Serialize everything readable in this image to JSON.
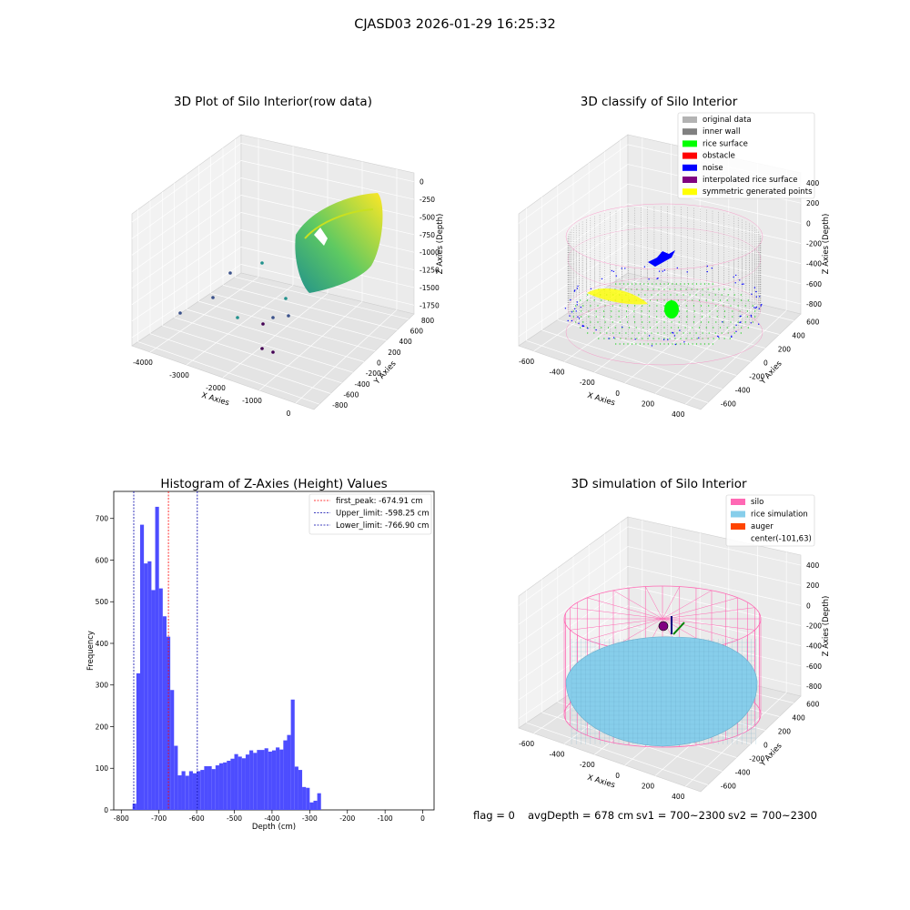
{
  "figure": {
    "title": "CJASD03 2026-01-29 16:25:32",
    "status_line": {
      "flag": "flag = 0",
      "avg_depth": "avgDepth = 678 cm",
      "sv1": "sv1 = 700~2300",
      "sv2": "sv2 = 700~2300"
    }
  },
  "chart_data": [
    {
      "type": "scatter",
      "title": "3D Plot of Silo Interior(row data)",
      "xlabel": "X Axies",
      "ylabel": "Y Axies",
      "zlabel": "Z Axies (Depth)",
      "x_ticks": [
        "-4000",
        "-3000",
        "-2000",
        "-1000",
        "0"
      ],
      "y_ticks": [
        "800",
        "600",
        "400",
        "200",
        "0",
        "-200",
        "-400",
        "-600",
        "-800"
      ],
      "z_ticks": [
        "0",
        "-250",
        "-500",
        "-750",
        "-1000",
        "-1250",
        "-1500",
        "-1750"
      ],
      "colormap": [
        "#440154",
        "#3b528b",
        "#21918c",
        "#5ec962",
        "#fde725"
      ],
      "grid": true
    },
    {
      "type": "scatter",
      "title": "3D classify of Silo Interior",
      "xlabel": "X Axies",
      "ylabel": "Y Axies",
      "zlabel": "Z Axies (Depth)",
      "x_ticks": [
        "-600",
        "-400",
        "-200",
        "0",
        "200",
        "400"
      ],
      "y_ticks": [
        "600",
        "400",
        "200",
        "0",
        "-200",
        "-400",
        "-600"
      ],
      "z_ticks": [
        "400",
        "200",
        "0",
        "-200",
        "-400",
        "-600",
        "-800"
      ],
      "legend_position": "top-right",
      "legend": [
        {
          "name": "original data",
          "color": "#b3b3b3"
        },
        {
          "name": "inner wall",
          "color": "#808080"
        },
        {
          "name": "rice surface",
          "color": "#00ff00"
        },
        {
          "name": "obstacle",
          "color": "#ff0000"
        },
        {
          "name": "noise",
          "color": "#0000ff"
        },
        {
          "name": "interpolated rice surface",
          "color": "#800080"
        },
        {
          "name": "symmetric generated points",
          "color": "#ffff00"
        }
      ],
      "grid": true
    },
    {
      "type": "bar",
      "title": "Histogram of Z-Axies (Height) Values",
      "xlabel": "Depth (cm)",
      "ylabel": "Frequency",
      "xlim": [
        -820,
        30
      ],
      "ylim": [
        0,
        765
      ],
      "x_ticks": [
        -800,
        -700,
        -600,
        -500,
        -400,
        -300,
        -200,
        -100,
        0
      ],
      "y_ticks": [
        0,
        100,
        200,
        300,
        400,
        500,
        600,
        700
      ],
      "bar_color": "#4d4dff",
      "bins_start": -770,
      "bin_width": 10,
      "values": [
        15,
        328,
        685,
        592,
        597,
        528,
        728,
        532,
        465,
        416,
        288,
        154,
        83,
        93,
        82,
        93,
        88,
        93,
        96,
        105,
        105,
        98,
        107,
        112,
        114,
        118,
        123,
        134,
        128,
        124,
        133,
        143,
        137,
        144,
        144,
        148,
        140,
        143,
        150,
        145,
        167,
        180,
        265,
        104,
        96,
        55,
        53,
        18,
        22,
        40
      ],
      "reference_lines": [
        {
          "label": "first_peak: -674.91 cm",
          "x": -674.91,
          "color": "#ff0000"
        },
        {
          "label": "Upper_limit: -598.25 cm",
          "x": -598.25,
          "color": "#0000aa"
        },
        {
          "label": "Lower_limit: -766.90 cm",
          "x": -766.9,
          "color": "#0000aa"
        }
      ],
      "legend_position": "top-right",
      "grid": false
    },
    {
      "type": "scatter",
      "title": "3D simulation of Silo Interior",
      "xlabel": "X Axies",
      "ylabel": "Y Axies",
      "zlabel": "Z Axies (Depth)",
      "x_ticks": [
        "-600",
        "-400",
        "-200",
        "0",
        "200",
        "400"
      ],
      "y_ticks": [
        "600",
        "400",
        "200",
        "0",
        "-200",
        "-400",
        "-600"
      ],
      "z_ticks": [
        "400",
        "200",
        "0",
        "-200",
        "-400",
        "-600",
        "-800"
      ],
      "legend_position": "top-right",
      "legend": [
        {
          "name": "silo",
          "color": "#ff69b4"
        },
        {
          "name": "rice simulation",
          "color": "#87ceeb"
        },
        {
          "name": "auger",
          "color": "#ff4500"
        },
        {
          "name": "center(-101,63)",
          "color": ""
        }
      ],
      "grid": true
    }
  ]
}
